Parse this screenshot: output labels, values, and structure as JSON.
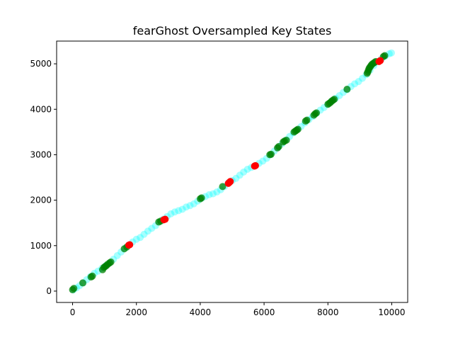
{
  "chart_data": {
    "type": "scatter",
    "title": "fearGhost Oversampled Key States",
    "xlabel": "",
    "ylabel": "",
    "xlim": [
      -500,
      10500
    ],
    "ylim": [
      -250,
      5500
    ],
    "xticks": [
      0,
      2000,
      4000,
      6000,
      8000,
      10000
    ],
    "yticks": [
      0,
      1000,
      2000,
      3000,
      4000,
      5000
    ],
    "grid": false,
    "legend": "none",
    "series": [
      {
        "color": "#00ffff",
        "alpha": 0.35,
        "points": [
          [
            20,
            25
          ],
          [
            120,
            70
          ],
          [
            220,
            120
          ],
          [
            330,
            180
          ],
          [
            440,
            250
          ],
          [
            560,
            320
          ],
          [
            680,
            390
          ],
          [
            800,
            440
          ],
          [
            920,
            500
          ],
          [
            1040,
            560
          ],
          [
            1160,
            620
          ],
          [
            1280,
            700
          ],
          [
            1400,
            780
          ],
          [
            1520,
            860
          ],
          [
            1640,
            940
          ],
          [
            1760,
            1010
          ],
          [
            1880,
            1080
          ],
          [
            2000,
            1140
          ],
          [
            2120,
            1180
          ],
          [
            2240,
            1250
          ],
          [
            2360,
            1320
          ],
          [
            2480,
            1380
          ],
          [
            2600,
            1440
          ],
          [
            2720,
            1520
          ],
          [
            2840,
            1580
          ],
          [
            2960,
            1640
          ],
          [
            3080,
            1700
          ],
          [
            3200,
            1740
          ],
          [
            3320,
            1770
          ],
          [
            3440,
            1800
          ],
          [
            3560,
            1850
          ],
          [
            3680,
            1880
          ],
          [
            3800,
            1920
          ],
          [
            3920,
            1980
          ],
          [
            4040,
            2040
          ],
          [
            4160,
            2080
          ],
          [
            4280,
            2120
          ],
          [
            4400,
            2140
          ],
          [
            4520,
            2180
          ],
          [
            4640,
            2230
          ],
          [
            4760,
            2300
          ],
          [
            4880,
            2380
          ],
          [
            5000,
            2430
          ],
          [
            5120,
            2480
          ],
          [
            5240,
            2550
          ],
          [
            5360,
            2620
          ],
          [
            5480,
            2680
          ],
          [
            5600,
            2720
          ],
          [
            5720,
            2760
          ],
          [
            5840,
            2810
          ],
          [
            5960,
            2860
          ],
          [
            6080,
            2920
          ],
          [
            6200,
            3000
          ],
          [
            6320,
            3080
          ],
          [
            6440,
            3160
          ],
          [
            6560,
            3240
          ],
          [
            6680,
            3320
          ],
          [
            6800,
            3400
          ],
          [
            6920,
            3480
          ],
          [
            7040,
            3550
          ],
          [
            7160,
            3620
          ],
          [
            7280,
            3700
          ],
          [
            7400,
            3770
          ],
          [
            7520,
            3840
          ],
          [
            7640,
            3910
          ],
          [
            7760,
            3980
          ],
          [
            7880,
            4040
          ],
          [
            8000,
            4110
          ],
          [
            8120,
            4180
          ],
          [
            8240,
            4240
          ],
          [
            8360,
            4300
          ],
          [
            8480,
            4370
          ],
          [
            8600,
            4430
          ],
          [
            8720,
            4500
          ],
          [
            8840,
            4560
          ],
          [
            8960,
            4610
          ],
          [
            9080,
            4680
          ],
          [
            9200,
            4760
          ],
          [
            9320,
            4860
          ],
          [
            9440,
            4960
          ],
          [
            9560,
            5050
          ],
          [
            9680,
            5110
          ],
          [
            9800,
            5170
          ],
          [
            9920,
            5220
          ],
          [
            9990,
            5240
          ]
        ]
      },
      {
        "color": "#008000",
        "alpha": 0.75,
        "points": [
          [
            0,
            30
          ],
          [
            40,
            60
          ],
          [
            320,
            180
          ],
          [
            580,
            310
          ],
          [
            620,
            330
          ],
          [
            940,
            470
          ],
          [
            980,
            520
          ],
          [
            1020,
            540
          ],
          [
            1060,
            560
          ],
          [
            1100,
            590
          ],
          [
            1160,
            620
          ],
          [
            1200,
            640
          ],
          [
            1620,
            930
          ],
          [
            1700,
            970
          ],
          [
            2700,
            1520
          ],
          [
            2760,
            1540
          ],
          [
            4000,
            2030
          ],
          [
            4040,
            2050
          ],
          [
            4700,
            2300
          ],
          [
            6180,
            3000
          ],
          [
            6220,
            3010
          ],
          [
            6420,
            3150
          ],
          [
            6460,
            3180
          ],
          [
            6600,
            3280
          ],
          [
            6640,
            3300
          ],
          [
            6700,
            3320
          ],
          [
            6940,
            3500
          ],
          [
            6980,
            3520
          ],
          [
            7020,
            3540
          ],
          [
            7060,
            3560
          ],
          [
            7300,
            3740
          ],
          [
            7340,
            3760
          ],
          [
            7560,
            3870
          ],
          [
            7600,
            3900
          ],
          [
            7640,
            3920
          ],
          [
            8000,
            4110
          ],
          [
            8040,
            4130
          ],
          [
            8080,
            4150
          ],
          [
            8120,
            4180
          ],
          [
            8160,
            4200
          ],
          [
            8200,
            4220
          ],
          [
            8600,
            4440
          ],
          [
            9230,
            4790
          ],
          [
            9250,
            4820
          ],
          [
            9270,
            4860
          ],
          [
            9290,
            4900
          ],
          [
            9320,
            4930
          ],
          [
            9350,
            4960
          ],
          [
            9380,
            4990
          ],
          [
            9420,
            5010
          ],
          [
            9460,
            5030
          ],
          [
            9500,
            5050
          ],
          [
            9740,
            5160
          ],
          [
            9780,
            5180
          ]
        ]
      },
      {
        "color": "#ff0000",
        "alpha": 1,
        "points": [
          [
            1760,
            1010
          ],
          [
            1790,
            1020
          ],
          [
            2860,
            1570
          ],
          [
            2900,
            1580
          ],
          [
            4880,
            2370
          ],
          [
            4910,
            2390
          ],
          [
            4940,
            2410
          ],
          [
            5700,
            2750
          ],
          [
            5730,
            2760
          ],
          [
            9600,
            5050
          ],
          [
            9640,
            5070
          ]
        ]
      }
    ]
  }
}
